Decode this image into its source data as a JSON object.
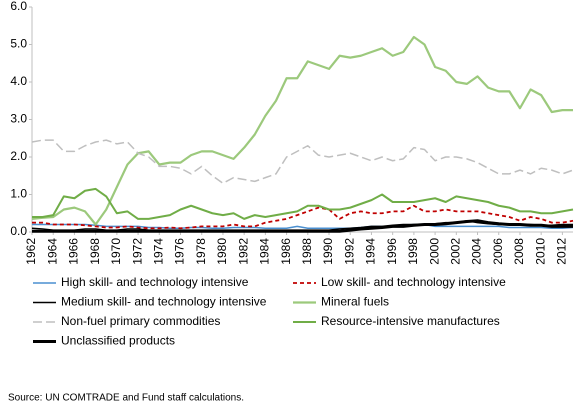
{
  "chart_data": {
    "type": "line",
    "x": [
      1962,
      1963,
      1964,
      1965,
      1966,
      1967,
      1968,
      1969,
      1970,
      1971,
      1972,
      1973,
      1974,
      1975,
      1976,
      1977,
      1978,
      1979,
      1980,
      1981,
      1982,
      1983,
      1984,
      1985,
      1986,
      1987,
      1988,
      1989,
      1990,
      1991,
      1992,
      1993,
      1994,
      1995,
      1996,
      1997,
      1998,
      1999,
      2000,
      2001,
      2002,
      2003,
      2004,
      2005,
      2006,
      2007,
      2008,
      2009,
      2010,
      2011,
      2012,
      2013
    ],
    "xlim": [
      1962,
      2013
    ],
    "xticks": [
      1962,
      1964,
      1966,
      1968,
      1970,
      1972,
      1974,
      1976,
      1978,
      1980,
      1982,
      1984,
      1986,
      1988,
      1990,
      1992,
      1994,
      1996,
      1998,
      2000,
      2002,
      2004,
      2006,
      2008,
      2010,
      2012
    ],
    "ylim": [
      0,
      6
    ],
    "yticks": [
      {
        "value": 0,
        "label": "0.0"
      },
      {
        "value": 1,
        "label": "1.0"
      },
      {
        "value": 2,
        "label": "2.0"
      },
      {
        "value": 3,
        "label": "3.0"
      },
      {
        "value": 4,
        "label": "4.0"
      },
      {
        "value": 5,
        "label": "5.0"
      },
      {
        "value": 6,
        "label": "6.0"
      }
    ],
    "grid": false,
    "series": [
      {
        "name": "High skill- and technology intensive",
        "color": "#4a8fd0",
        "dash": "solid",
        "line_width": 1.5,
        "values": [
          0.2,
          0.2,
          0.2,
          0.2,
          0.2,
          0.2,
          0.18,
          0.15,
          0.15,
          0.15,
          0.15,
          0.12,
          0.12,
          0.1,
          0.1,
          0.12,
          0.12,
          0.1,
          0.1,
          0.12,
          0.12,
          0.12,
          0.1,
          0.1,
          0.1,
          0.15,
          0.1,
          0.1,
          0.1,
          0.1,
          0.1,
          0.12,
          0.15,
          0.15,
          0.15,
          0.18,
          0.2,
          0.2,
          0.15,
          0.15,
          0.15,
          0.15,
          0.15,
          0.15,
          0.15,
          0.12,
          0.12,
          0.12,
          0.12,
          0.1,
          0.1,
          0.12
        ]
      },
      {
        "name": "Low skill- and technology intensive",
        "color": "#c00000",
        "dash": "dashed",
        "line_width": 1.8,
        "values": [
          0.25,
          0.25,
          0.2,
          0.2,
          0.2,
          0.18,
          0.15,
          0.12,
          0.12,
          0.15,
          0.12,
          0.1,
          0.1,
          0.12,
          0.1,
          0.12,
          0.15,
          0.15,
          0.15,
          0.2,
          0.15,
          0.15,
          0.25,
          0.3,
          0.35,
          0.45,
          0.55,
          0.65,
          0.6,
          0.35,
          0.5,
          0.55,
          0.5,
          0.5,
          0.55,
          0.55,
          0.7,
          0.55,
          0.55,
          0.6,
          0.55,
          0.55,
          0.55,
          0.5,
          0.45,
          0.4,
          0.3,
          0.4,
          0.35,
          0.25,
          0.25,
          0.3
        ]
      },
      {
        "name": "Medium skill- and technology intensive",
        "color": "#000000",
        "dash": "solid",
        "line_width": 1.5,
        "values": [
          0.1,
          0.08,
          0.05,
          0.05,
          0.05,
          0.08,
          0.08,
          0.05,
          0.05,
          0.08,
          0.08,
          0.05,
          0.05,
          0.05,
          0.05,
          0.05,
          0.05,
          0.05,
          0.05,
          0.05,
          0.05,
          0.05,
          0.05,
          0.05,
          0.05,
          0.05,
          0.05,
          0.05,
          0.05,
          0.08,
          0.1,
          0.12,
          0.15,
          0.15,
          0.18,
          0.2,
          0.2,
          0.2,
          0.22,
          0.25,
          0.25,
          0.3,
          0.25,
          0.22,
          0.2,
          0.2,
          0.2,
          0.2,
          0.18,
          0.18,
          0.2,
          0.2
        ]
      },
      {
        "name": "Mineral fuels",
        "color": "#9cc97c",
        "dash": "solid",
        "line_width": 2.2,
        "values": [
          0.35,
          0.38,
          0.4,
          0.6,
          0.65,
          0.55,
          0.2,
          0.6,
          1.2,
          1.8,
          2.1,
          2.15,
          1.8,
          1.85,
          1.85,
          2.05,
          2.15,
          2.15,
          2.05,
          1.95,
          2.25,
          2.6,
          3.1,
          3.5,
          4.1,
          4.1,
          4.55,
          4.45,
          4.35,
          4.7,
          4.65,
          4.7,
          4.8,
          4.9,
          4.7,
          4.8,
          5.2,
          5.0,
          4.4,
          4.3,
          4.0,
          3.95,
          4.15,
          3.85,
          3.75,
          3.75,
          3.3,
          3.8,
          3.65,
          3.2,
          3.25,
          3.25
        ]
      },
      {
        "name": "Non-fuel primary commodities",
        "color": "#bfbfbf",
        "dash": "dashed",
        "line_width": 1.5,
        "values": [
          2.4,
          2.45,
          2.45,
          2.15,
          2.15,
          2.3,
          2.4,
          2.45,
          2.35,
          2.4,
          2.1,
          2.0,
          1.75,
          1.75,
          1.7,
          1.55,
          1.75,
          1.5,
          1.3,
          1.45,
          1.4,
          1.35,
          1.45,
          1.55,
          2.0,
          2.15,
          2.3,
          2.05,
          2.0,
          2.05,
          2.1,
          2.0,
          1.9,
          2.0,
          1.9,
          1.95,
          2.25,
          2.2,
          1.9,
          2.0,
          2.0,
          1.95,
          1.85,
          1.7,
          1.55,
          1.55,
          1.65,
          1.55,
          1.7,
          1.65,
          1.55,
          1.65
        ]
      },
      {
        "name": "Resource-intensive manufactures",
        "color": "#70ad47",
        "dash": "solid",
        "line_width": 2,
        "values": [
          0.4,
          0.4,
          0.45,
          0.95,
          0.9,
          1.1,
          1.15,
          0.95,
          0.5,
          0.55,
          0.35,
          0.35,
          0.4,
          0.45,
          0.6,
          0.7,
          0.6,
          0.5,
          0.45,
          0.5,
          0.35,
          0.45,
          0.4,
          0.45,
          0.5,
          0.55,
          0.7,
          0.7,
          0.6,
          0.6,
          0.65,
          0.75,
          0.85,
          1.0,
          0.8,
          0.8,
          0.8,
          0.85,
          0.9,
          0.8,
          0.95,
          0.9,
          0.85,
          0.8,
          0.7,
          0.65,
          0.55,
          0.55,
          0.5,
          0.5,
          0.55,
          0.6
        ]
      },
      {
        "name": "Unclassified products",
        "color": "#000000",
        "dash": "solid",
        "line_width": 3,
        "values": [
          0.02,
          0.02,
          0.02,
          0.02,
          0.02,
          0.02,
          0.02,
          0.02,
          0.02,
          0.02,
          0.02,
          0.02,
          0.02,
          0.02,
          0.02,
          0.02,
          0.02,
          0.02,
          0.02,
          0.02,
          0.02,
          0.02,
          0.02,
          0.02,
          0.02,
          0.02,
          0.02,
          0.02,
          0.02,
          0.02,
          0.05,
          0.08,
          0.1,
          0.12,
          0.15,
          0.15,
          0.18,
          0.2,
          0.2,
          0.22,
          0.25,
          0.28,
          0.3,
          0.25,
          0.22,
          0.2,
          0.2,
          0.18,
          0.18,
          0.15,
          0.15,
          0.15
        ]
      }
    ],
    "source": "Source: UN COMTRADE and Fund staff calculations."
  }
}
